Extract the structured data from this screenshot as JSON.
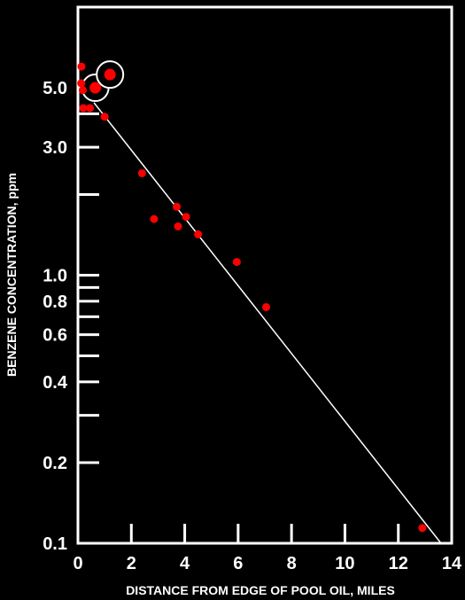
{
  "chart_data": {
    "type": "scatter",
    "title": "",
    "xlabel": "DISTANCE FROM EDGE OF POOL OIL, MILES",
    "ylabel": "BENZENE CONCENTRATION, ppm",
    "xlim": [
      0,
      14
    ],
    "ylim": [
      0.1,
      10
    ],
    "yscale": "log",
    "grid": false,
    "x_ticks": [
      0,
      2,
      4,
      6,
      8,
      10,
      12,
      14
    ],
    "x_tick_labels": [
      "0",
      "2",
      "4",
      "6",
      "8",
      "10",
      "12",
      "14"
    ],
    "y_ticks_labeled": [
      0.1,
      0.2,
      0.4,
      0.6,
      0.8,
      1.0,
      3.0,
      5.0
    ],
    "y_tick_labels": [
      "0.1",
      "0.2",
      "0.4",
      "0.6",
      "0.8",
      "1.0",
      "3.0",
      "5.0"
    ],
    "y_ticks_minor": [
      0.3,
      0.5,
      0.7,
      0.9,
      2.0,
      4.0
    ],
    "colors": {
      "background": "#000000",
      "axis": "#ffffff",
      "points": "#ff0000",
      "fit_line": "#ffffff"
    },
    "series": [
      {
        "points": [
          {
            "x": 0.13,
            "y": 6.0
          },
          {
            "x": 0.12,
            "y": 5.2
          },
          {
            "x": 0.18,
            "y": 4.9
          },
          {
            "x": 0.2,
            "y": 4.2
          },
          {
            "x": 0.45,
            "y": 4.2
          },
          {
            "x": 1.0,
            "y": 3.9
          },
          {
            "x": 2.4,
            "y": 2.4
          },
          {
            "x": 2.85,
            "y": 1.62
          },
          {
            "x": 3.7,
            "y": 1.8
          },
          {
            "x": 4.05,
            "y": 1.65
          },
          {
            "x": 3.75,
            "y": 1.52
          },
          {
            "x": 4.5,
            "y": 1.42
          },
          {
            "x": 5.95,
            "y": 1.12
          },
          {
            "x": 7.05,
            "y": 0.76
          },
          {
            "x": 12.9,
            "y": 0.114
          }
        ]
      },
      {
        "highlighted": true,
        "points": [
          {
            "x": 0.65,
            "y": 5.0
          },
          {
            "x": 1.2,
            "y": 5.6
          }
        ]
      }
    ],
    "fit_line": {
      "from": {
        "x": 0.6,
        "y": 4.4
      },
      "to": {
        "x": 13.6,
        "y": 0.1
      }
    }
  }
}
